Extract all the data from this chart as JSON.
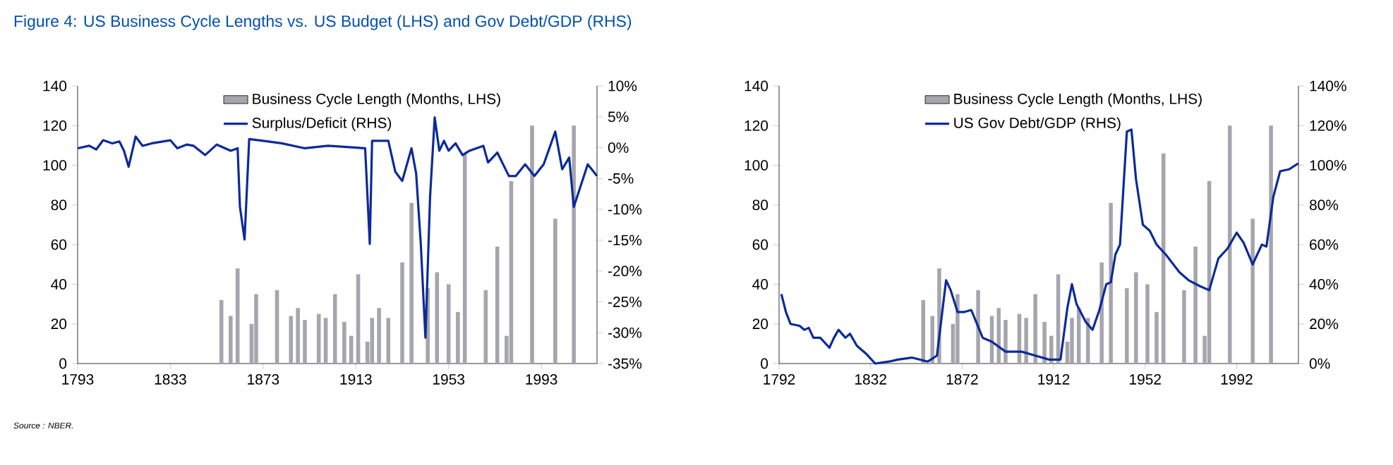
{
  "chart_data": [
    {
      "type": "bar",
      "title": "Figure 4: US Business Cycle Lengths vs. US Budget (LHS) and Gov Debt/GDP (RHS)",
      "annotations": [
        "Source : NBER."
      ],
      "x": [
        1855,
        1859,
        1862,
        1868,
        1870,
        1879,
        1885,
        1888,
        1891,
        1897,
        1900,
        1904,
        1908,
        1911,
        1914,
        1918,
        1920,
        1923,
        1927,
        1933,
        1937,
        1944,
        1948,
        1953,
        1957,
        1960,
        1969,
        1974,
        1978,
        1980,
        1989,
        1999,
        2007
      ],
      "series": [
        {
          "name": "Business Cycle Length (Months, LHS)",
          "color": "#a5a5ad",
          "values": [
            32,
            24,
            48,
            20,
            35,
            37,
            24,
            28,
            22,
            25,
            23,
            35,
            21,
            14,
            45,
            11,
            23,
            28,
            23,
            51,
            81,
            38,
            46,
            40,
            26,
            106,
            37,
            59,
            14,
            92,
            120,
            73,
            120
          ]
        },
        {
          "name": "Surplus/Deficit (RHS)",
          "type": "line",
          "axis": "y2",
          "color": "#0c2a99",
          "x": [
            1793,
            1798,
            1801,
            1804,
            1808,
            1811,
            1813,
            1815,
            1818,
            1821,
            1825,
            1833,
            1836,
            1840,
            1843,
            1848,
            1853,
            1859,
            1862,
            1863,
            1865,
            1867,
            1873,
            1881,
            1891,
            1901,
            1917,
            1919,
            1920,
            1927,
            1930,
            1933,
            1937,
            1939,
            1941,
            1943,
            1945,
            1947,
            1949,
            1951,
            1953,
            1956,
            1959,
            1962,
            1968,
            1970,
            1974,
            1979,
            1982,
            1986,
            1990,
            1994,
            1999,
            2002,
            2005,
            2007,
            2009,
            2013,
            2017
          ],
          "values": [
            -0.1,
            0.3,
            -0.3,
            1.2,
            0.7,
            1,
            -0.5,
            -3.1,
            1.8,
            0.3,
            0.7,
            1.2,
            -0.1,
            0.5,
            0.3,
            -1.2,
            0.5,
            -0.5,
            -0.1,
            -9.6,
            -14.9,
            1.4,
            1.1,
            0.7,
            -0.1,
            0.3,
            -0.1,
            -15.6,
            1.1,
            1.1,
            -3.9,
            -5.4,
            -0.1,
            -4.2,
            -15.6,
            -30.8,
            -8,
            4.9,
            -0.5,
            1.1,
            -0.5,
            0.7,
            -1.2,
            -0.5,
            0.3,
            -2.4,
            -0.8,
            -4.6,
            -4.6,
            -2.7,
            -4.6,
            -2.7,
            2.6,
            -3.5,
            -1.6,
            -9.6,
            -7.3,
            -2.7,
            -4.6
          ]
        }
      ],
      "xlim": [
        1793,
        2017
      ],
      "xticks": [
        1793,
        1833,
        1873,
        1913,
        1953,
        1993
      ],
      "ylim": [
        0,
        140
      ],
      "yticks": [
        0,
        20,
        40,
        60,
        80,
        100,
        120,
        140
      ],
      "y2lim": [
        -35,
        10
      ],
      "y2ticks": [
        {
          "value": -35,
          "label": "-35%"
        },
        {
          "value": -30,
          "label": "-30%"
        },
        {
          "value": -25,
          "label": "-25%"
        },
        {
          "value": -20,
          "label": "-20%"
        },
        {
          "value": -15,
          "label": "-15%"
        },
        {
          "value": -10,
          "label": "-10%"
        },
        {
          "value": -5,
          "label": "-5%"
        },
        {
          "value": 0,
          "label": "0%"
        },
        {
          "value": 5,
          "label": "5%"
        },
        {
          "value": 10,
          "label": "10%"
        }
      ],
      "legend": "top"
    },
    {
      "type": "bar",
      "x": [
        1855,
        1859,
        1862,
        1868,
        1870,
        1879,
        1885,
        1888,
        1891,
        1897,
        1900,
        1904,
        1908,
        1911,
        1914,
        1918,
        1920,
        1923,
        1927,
        1933,
        1937,
        1944,
        1948,
        1953,
        1957,
        1960,
        1969,
        1974,
        1978,
        1980,
        1989,
        1999,
        2007
      ],
      "series": [
        {
          "name": "Business Cycle Length (Months, LHS)",
          "color": "#a5a5ad",
          "values": [
            32,
            24,
            48,
            20,
            35,
            37,
            24,
            28,
            22,
            25,
            23,
            35,
            21,
            14,
            45,
            11,
            23,
            28,
            23,
            51,
            81,
            38,
            46,
            40,
            26,
            106,
            37,
            59,
            14,
            92,
            120,
            73,
            120
          ]
        },
        {
          "name": "US Gov Debt/GDP (RHS)",
          "type": "line",
          "axis": "y2",
          "color": "#0c2a99",
          "x": [
            1793,
            1795,
            1797,
            1801,
            1803,
            1805,
            1807,
            1810,
            1814,
            1816,
            1818,
            1821,
            1823,
            1826,
            1830,
            1834,
            1840,
            1844,
            1850,
            1857,
            1861,
            1865,
            1867,
            1870,
            1873,
            1876,
            1881,
            1885,
            1891,
            1898,
            1904,
            1910,
            1915,
            1918,
            1920,
            1922,
            1926,
            1929,
            1932,
            1935,
            1937,
            1939,
            1941,
            1944,
            1946,
            1948,
            1951,
            1954,
            1957,
            1961,
            1967,
            1971,
            1976,
            1980,
            1984,
            1988,
            1992,
            1995,
            1999,
            2003,
            2005,
            2008,
            2011,
            2015,
            2019
          ],
          "values": [
            35,
            26,
            20,
            19,
            17,
            18,
            13,
            13,
            8,
            13,
            17,
            13,
            15,
            9,
            5,
            0,
            1,
            2,
            3,
            1,
            4,
            42,
            37,
            26,
            26,
            27,
            13,
            11,
            6,
            6,
            4,
            2,
            2,
            28,
            40,
            30,
            21,
            17,
            27,
            40,
            41,
            55,
            60,
            117,
            118,
            93,
            70,
            67,
            60,
            55,
            46,
            42,
            39,
            37,
            53,
            58,
            66,
            61,
            50,
            60,
            59,
            84,
            97,
            98,
            101
          ]
        }
      ],
      "xlim": [
        1792,
        2019
      ],
      "xticks": [
        1792,
        1832,
        1872,
        1912,
        1952,
        1992
      ],
      "ylim": [
        0,
        140
      ],
      "yticks": [
        0,
        20,
        40,
        60,
        80,
        100,
        120,
        140
      ],
      "y2lim": [
        0,
        140
      ],
      "y2ticks": [
        {
          "value": 0,
          "label": "0%"
        },
        {
          "value": 20,
          "label": "20%"
        },
        {
          "value": 40,
          "label": "40%"
        },
        {
          "value": 60,
          "label": "60%"
        },
        {
          "value": 80,
          "label": "80%"
        },
        {
          "value": 100,
          "label": "100%"
        },
        {
          "value": 120,
          "label": "120%"
        },
        {
          "value": 140,
          "label": "140%"
        }
      ],
      "legend": "top"
    }
  ]
}
